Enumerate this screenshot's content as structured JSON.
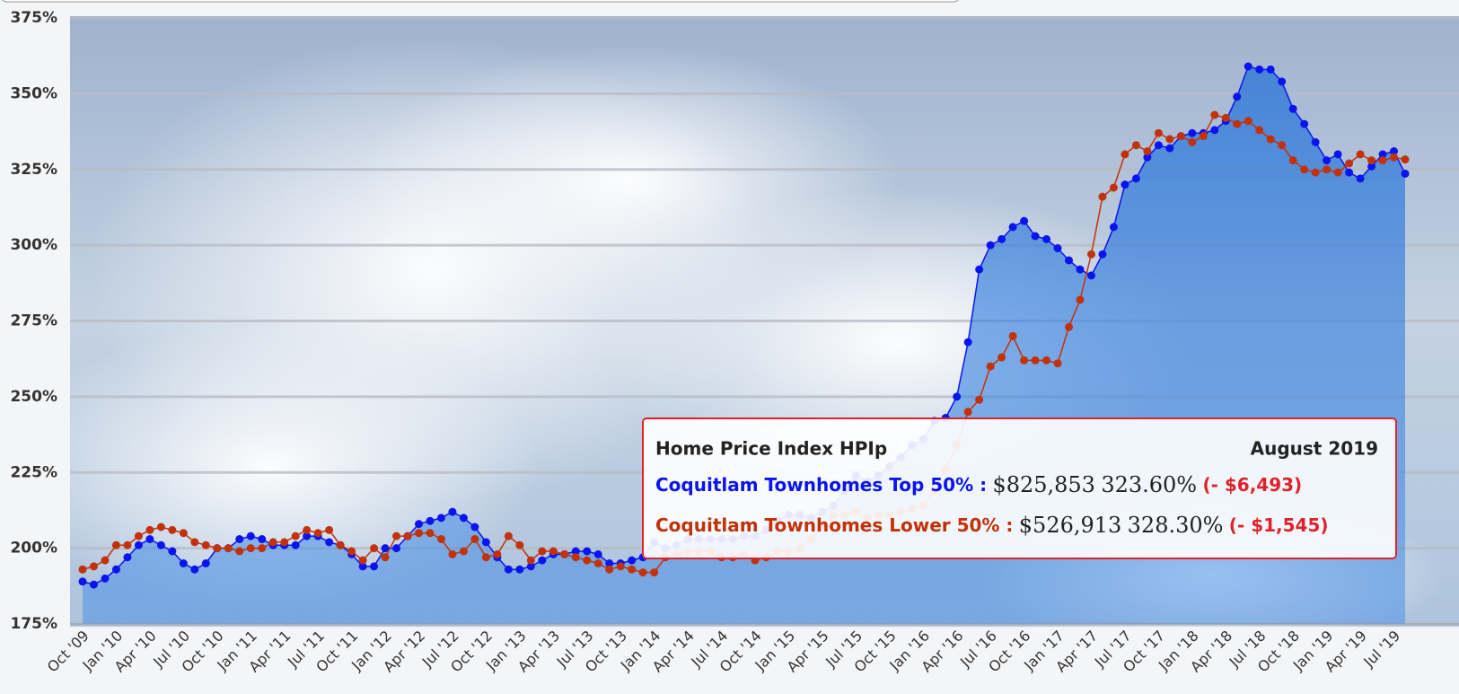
{
  "chart_data": {
    "type": "line",
    "categories": [
      "Oct '09",
      null,
      null,
      "Jan '10",
      null,
      null,
      "Apr '10",
      null,
      null,
      "Jul '10",
      null,
      null,
      "Oct '10",
      null,
      null,
      "Jan '11",
      null,
      null,
      "Apr '11",
      null,
      null,
      "Jul '11",
      null,
      null,
      "Oct '11",
      null,
      null,
      "Jan '12",
      null,
      null,
      "Apr '12",
      null,
      null,
      "Jul '12",
      null,
      null,
      "Oct '12",
      null,
      null,
      "Jan '13",
      null,
      null,
      "Apr '13",
      null,
      null,
      "Jul '13",
      null,
      null,
      "Oct '13",
      null,
      null,
      "Jan '14",
      null,
      null,
      "Apr '14",
      null,
      null,
      "Jul '14",
      null,
      null,
      "Oct '14",
      null,
      null,
      "Jan '15",
      null,
      null,
      "Apr '15",
      null,
      null,
      "Jul '15",
      null,
      null,
      "Oct '15",
      null,
      null,
      "Jan '16",
      null,
      null,
      "Apr '16",
      null,
      null,
      "Jul '16",
      null,
      null,
      "Oct '16",
      null,
      null,
      "Jan '17",
      null,
      null,
      "Apr '17",
      null,
      null,
      "Jul '17",
      null,
      null,
      "Oct '17",
      null,
      null,
      "Jan '18",
      null,
      null,
      "Apr '18",
      null,
      null,
      "Jul '18",
      null,
      null,
      "Oct '18",
      null,
      null,
      "Jan '19",
      null,
      null,
      "Apr '19",
      null,
      null,
      "Jul '19",
      null
    ],
    "series": [
      {
        "name": "Coquitlam Townhomes Top 50%",
        "color": "#0a14f0",
        "values": [
          189,
          188,
          190,
          193,
          197,
          201,
          203,
          201,
          199,
          195,
          193,
          195,
          200,
          200,
          203,
          204,
          203,
          201,
          201,
          201,
          204,
          204,
          202,
          201,
          198,
          194,
          194,
          200,
          200,
          204,
          208,
          209,
          210,
          212,
          210,
          207,
          202,
          197,
          193,
          193,
          194,
          196,
          198,
          198,
          199,
          199,
          198,
          195,
          195,
          196,
          197,
          202,
          200,
          201,
          203,
          203,
          203,
          203,
          203,
          204,
          204,
          206,
          209,
          211,
          211,
          210,
          212,
          214,
          219,
          224,
          222,
          224,
          227,
          230,
          234,
          236,
          242,
          243,
          250,
          268,
          292,
          300,
          302,
          306,
          308,
          303,
          302,
          299,
          295,
          292,
          290,
          297,
          306,
          320,
          322,
          329,
          333,
          332,
          336,
          337,
          337,
          338,
          341,
          349,
          359,
          358,
          358,
          354,
          345,
          340,
          334,
          328,
          330,
          324,
          322,
          326,
          330,
          331,
          323.6
        ]
      },
      {
        "name": "Coquitlam Townhomes Lower 50%",
        "color": "#c2320a",
        "values": [
          193,
          194,
          196,
          201,
          201,
          204,
          206,
          207,
          206,
          205,
          202,
          201,
          200,
          200,
          199,
          200,
          200,
          202,
          202,
          204,
          206,
          205,
          206,
          201,
          199,
          196,
          200,
          197,
          204,
          204,
          205,
          205,
          203,
          198,
          199,
          203,
          197,
          198,
          204,
          201,
          196,
          199,
          199,
          198,
          197,
          196,
          195,
          193,
          194,
          193,
          192,
          192,
          197,
          198,
          199,
          199,
          199,
          197,
          197,
          198,
          196,
          197,
          199,
          199,
          200,
          203,
          207,
          211,
          211,
          212,
          210,
          211,
          211,
          212,
          213,
          214,
          219,
          226,
          234,
          245,
          249,
          260,
          263,
          270,
          262,
          262,
          262,
          261,
          273,
          282,
          297,
          316,
          319,
          330,
          333,
          331,
          337,
          335,
          336,
          334,
          336,
          343,
          342,
          340,
          341,
          338,
          335,
          333,
          328,
          325,
          324,
          325,
          324,
          327,
          330,
          328,
          328,
          329,
          328.3
        ]
      }
    ],
    "ylim": [
      175,
      375
    ],
    "yticks": [
      {
        "value": 175,
        "label": "175%"
      },
      {
        "value": 200,
        "label": "200%"
      },
      {
        "value": 225,
        "label": "225%"
      },
      {
        "value": 250,
        "label": "250%"
      },
      {
        "value": 275,
        "label": "275%"
      },
      {
        "value": 300,
        "label": "300%"
      },
      {
        "value": 325,
        "label": "325%"
      },
      {
        "value": 350,
        "label": "350%"
      },
      {
        "value": 375,
        "label": "375%"
      }
    ],
    "grid": true,
    "tooltip": {
      "title": "Home Price Index HPIp",
      "date": "August 2019",
      "rows": [
        {
          "name": "Coquitlam Townhomes Top 50% :",
          "price": "$825,853",
          "percent": "323.60%",
          "change": "(- $6,493)"
        },
        {
          "name": "Coquitlam Townhomes Lower 50% :",
          "price": "$526,913",
          "percent": "328.30%",
          "change": "(- $1,545)"
        }
      ]
    }
  }
}
